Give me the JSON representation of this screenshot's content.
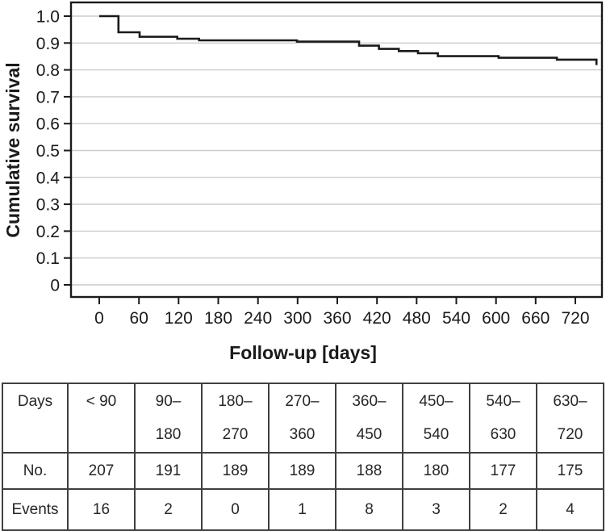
{
  "colors": {
    "axis": "#1a1a1a",
    "text": "#1a1a1a",
    "gridline": "#cccccc",
    "curve": "#1a1a1a",
    "table_border": "#404040",
    "background": "#ffffff"
  },
  "chart_data": {
    "type": "line",
    "subtype": "kaplan-meier-step",
    "title": "",
    "xlabel": "Follow-up [days]",
    "ylabel": "Cumulative survival",
    "xlim": [
      0,
      720
    ],
    "ylim": [
      0,
      1.0
    ],
    "grid": "horizontal",
    "legend": "none",
    "x_ticks": [
      0,
      60,
      120,
      180,
      240,
      300,
      360,
      420,
      480,
      540,
      600,
      660,
      720
    ],
    "x_tick_labels": [
      "0",
      "60",
      "120",
      "180",
      "240",
      "300",
      "360",
      "420",
      "480",
      "540",
      "600",
      "660",
      "720"
    ],
    "y_ticks": [
      0,
      0.1,
      0.2,
      0.3,
      0.4,
      0.5,
      0.6,
      0.7,
      0.8,
      0.9,
      1.0
    ],
    "y_tick_labels": [
      "0",
      "0.1",
      "0.2",
      "0.3",
      "0.4",
      "0.5",
      "0.6",
      "0.7",
      "0.8",
      "0.9",
      "1.0"
    ],
    "series": [
      {
        "name": "Cumulative survival",
        "color": "#1a1a1a",
        "step_points_day_survival": [
          [
            0,
            1.0
          ],
          [
            29,
            0.94
          ],
          [
            61,
            0.923
          ],
          [
            118,
            0.916
          ],
          [
            151,
            0.91
          ],
          [
            299,
            0.905
          ],
          [
            393,
            0.89
          ],
          [
            423,
            0.878
          ],
          [
            453,
            0.87
          ],
          [
            482,
            0.862
          ],
          [
            512,
            0.851
          ],
          [
            604,
            0.845
          ],
          [
            692,
            0.838
          ],
          [
            752,
            0.818
          ]
        ]
      }
    ]
  },
  "table": {
    "header": [
      {
        "l1": "Days",
        "l2": ""
      },
      {
        "l1": "< 90",
        "l2": ""
      },
      {
        "l1": "90–",
        "l2": "180"
      },
      {
        "l1": "180–",
        "l2": "270"
      },
      {
        "l1": "270–",
        "l2": "360"
      },
      {
        "l1": "360–",
        "l2": "450"
      },
      {
        "l1": "450–",
        "l2": "540"
      },
      {
        "l1": "540–",
        "l2": "630"
      },
      {
        "l1": "630–",
        "l2": "720"
      }
    ],
    "rows": [
      {
        "label": "No.",
        "values": [
          "207",
          "191",
          "189",
          "189",
          "188",
          "180",
          "177",
          "175"
        ]
      },
      {
        "label": "Events",
        "values": [
          "16",
          "2",
          "0",
          "1",
          "8",
          "3",
          "2",
          "4"
        ]
      }
    ]
  }
}
